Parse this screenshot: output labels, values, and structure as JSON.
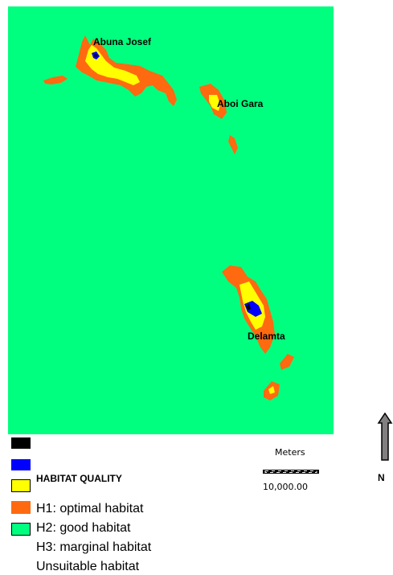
{
  "map": {
    "places": [
      "Abuna Josef",
      "Aboi Gara",
      "Delamta"
    ]
  },
  "legend": {
    "heading": "HABITAT QUALITY",
    "items": [
      "H1: optimal habitat",
      "H2: good habitat",
      "H3: marginal habitat",
      "Unsuitable habitat"
    ],
    "colors": {
      "black": "#000000",
      "blue": "#0000ff",
      "yellow": "#ffff00",
      "orange": "#ff6a10",
      "green": "#00ff7f"
    }
  },
  "scale": {
    "title": "Meters",
    "value": "10,000.00"
  },
  "north": {
    "label": "N"
  }
}
